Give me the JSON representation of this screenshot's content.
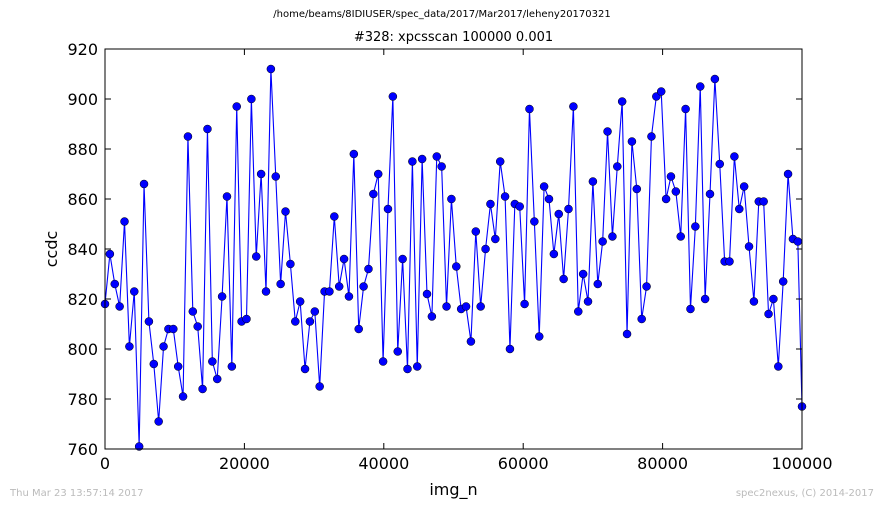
{
  "suptitle": "/home/beams/8IDIUSER/spec_data/2017/Mar2017/leheny20170321",
  "footer": {
    "left": "Thu Mar 23 13:57:14 2017",
    "right": "spec2nexus, (C) 2014-2017"
  },
  "colors": {
    "series": "#0000ff",
    "footer": "#bbbbbb"
  },
  "chart_data": {
    "type": "line",
    "title": "#328: xpcsscan 100000 0.001",
    "xlabel": "img_n",
    "ylabel": "ccdc",
    "xlim": [
      0,
      100000
    ],
    "ylim": [
      760,
      920
    ],
    "xticks": [
      0,
      20000,
      40000,
      60000,
      80000,
      100000
    ],
    "yticks": [
      760,
      780,
      800,
      820,
      840,
      860,
      880,
      900,
      920
    ],
    "grid": false,
    "marker": "circle",
    "series": [
      {
        "values": [
          [
            0,
            818
          ],
          [
            700,
            838
          ],
          [
            1400,
            826
          ],
          [
            2100,
            817
          ],
          [
            2800,
            851
          ],
          [
            3500,
            801
          ],
          [
            4200,
            823
          ],
          [
            4900,
            761
          ],
          [
            5600,
            866
          ],
          [
            6300,
            811
          ],
          [
            7000,
            794
          ],
          [
            7700,
            771
          ],
          [
            8400,
            801
          ],
          [
            9100,
            808
          ],
          [
            9800,
            808
          ],
          [
            10500,
            793
          ],
          [
            11200,
            781
          ],
          [
            11900,
            885
          ],
          [
            12600,
            815
          ],
          [
            13300,
            809
          ],
          [
            14000,
            784
          ],
          [
            14700,
            888
          ],
          [
            15400,
            795
          ],
          [
            16100,
            788
          ],
          [
            16800,
            821
          ],
          [
            17500,
            861
          ],
          [
            18200,
            793
          ],
          [
            18900,
            897
          ],
          [
            19600,
            811
          ],
          [
            20300,
            812
          ],
          [
            21000,
            900
          ],
          [
            21700,
            837
          ],
          [
            22400,
            870
          ],
          [
            23100,
            823
          ],
          [
            23800,
            912
          ],
          [
            24500,
            869
          ],
          [
            25200,
            826
          ],
          [
            25900,
            855
          ],
          [
            26600,
            834
          ],
          [
            27300,
            811
          ],
          [
            28000,
            819
          ],
          [
            28700,
            792
          ],
          [
            29400,
            811
          ],
          [
            30100,
            815
          ],
          [
            30800,
            785
          ],
          [
            31500,
            823
          ],
          [
            32200,
            823
          ],
          [
            32900,
            853
          ],
          [
            33600,
            825
          ],
          [
            34300,
            836
          ],
          [
            35000,
            821
          ],
          [
            35700,
            878
          ],
          [
            36400,
            808
          ],
          [
            37100,
            825
          ],
          [
            37800,
            832
          ],
          [
            38500,
            862
          ],
          [
            39200,
            870
          ],
          [
            39900,
            795
          ],
          [
            40600,
            856
          ],
          [
            41300,
            901
          ],
          [
            42000,
            799
          ],
          [
            42700,
            836
          ],
          [
            43400,
            792
          ],
          [
            44100,
            875
          ],
          [
            44800,
            793
          ],
          [
            45500,
            876
          ],
          [
            46200,
            822
          ],
          [
            46900,
            813
          ],
          [
            47600,
            877
          ],
          [
            48300,
            873
          ],
          [
            49000,
            817
          ],
          [
            49700,
            860
          ],
          [
            50400,
            833
          ],
          [
            51100,
            816
          ],
          [
            51800,
            817
          ],
          [
            52500,
            803
          ],
          [
            53200,
            847
          ],
          [
            53900,
            817
          ],
          [
            54600,
            840
          ],
          [
            55300,
            858
          ],
          [
            56000,
            844
          ],
          [
            56700,
            875
          ],
          [
            57400,
            861
          ],
          [
            58100,
            800
          ],
          [
            58800,
            858
          ],
          [
            59500,
            857
          ],
          [
            60200,
            818
          ],
          [
            60900,
            896
          ],
          [
            61600,
            851
          ],
          [
            62300,
            805
          ],
          [
            63000,
            865
          ],
          [
            63700,
            860
          ],
          [
            64400,
            838
          ],
          [
            65100,
            854
          ],
          [
            65800,
            828
          ],
          [
            66500,
            856
          ],
          [
            67200,
            897
          ],
          [
            67900,
            815
          ],
          [
            68600,
            830
          ],
          [
            69300,
            819
          ],
          [
            70000,
            867
          ],
          [
            70700,
            826
          ],
          [
            71400,
            843
          ],
          [
            72100,
            887
          ],
          [
            72800,
            845
          ],
          [
            73500,
            873
          ],
          [
            74200,
            899
          ],
          [
            74900,
            806
          ],
          [
            75600,
            883
          ],
          [
            76300,
            864
          ],
          [
            77000,
            812
          ],
          [
            77700,
            825
          ],
          [
            78400,
            885
          ],
          [
            79100,
            901
          ],
          [
            79800,
            903
          ],
          [
            80500,
            860
          ],
          [
            81200,
            869
          ],
          [
            81900,
            863
          ],
          [
            82600,
            845
          ],
          [
            83300,
            896
          ],
          [
            84000,
            816
          ],
          [
            84700,
            849
          ],
          [
            85400,
            905
          ],
          [
            86100,
            820
          ],
          [
            86800,
            862
          ],
          [
            87500,
            908
          ],
          [
            88200,
            874
          ],
          [
            88900,
            835
          ],
          [
            89600,
            835
          ],
          [
            90300,
            877
          ],
          [
            91000,
            856
          ],
          [
            91700,
            865
          ],
          [
            92400,
            841
          ],
          [
            93100,
            819
          ],
          [
            93800,
            859
          ],
          [
            94500,
            859
          ],
          [
            95200,
            814
          ],
          [
            95900,
            820
          ],
          [
            96600,
            793
          ],
          [
            97300,
            827
          ],
          [
            98000,
            870
          ],
          [
            98700,
            844
          ],
          [
            99400,
            843
          ],
          [
            100000,
            777
          ]
        ]
      }
    ]
  }
}
